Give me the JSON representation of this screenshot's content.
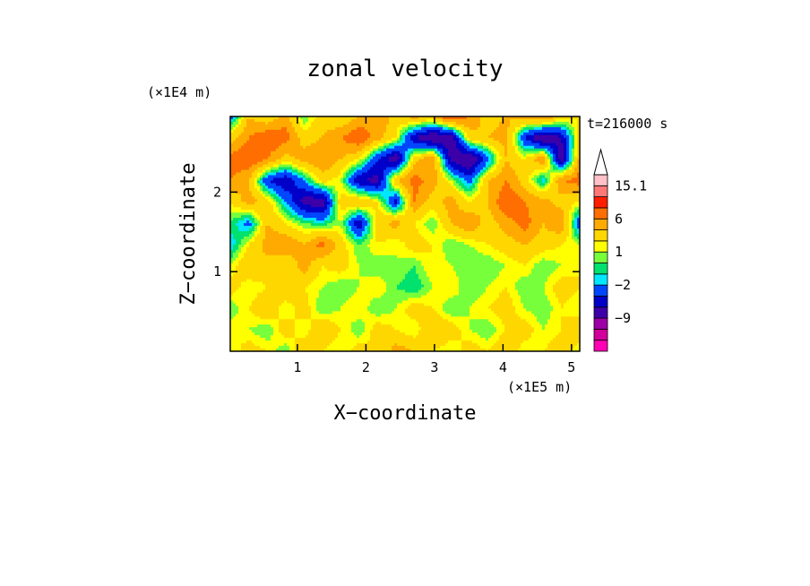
{
  "chart_data": {
    "type": "heatmap",
    "title": "zonal velocity",
    "xlabel": "X−coordinate",
    "ylabel": "Z−coordinate",
    "x_unit": "(×1E5 m)",
    "y_unit": "(×1E4 m)",
    "time_label": "t=216000 s",
    "xlim": [
      0.02,
      5.12
    ],
    "ylim": [
      0,
      2.95
    ],
    "x_ticks": [
      1,
      2,
      3,
      4,
      5
    ],
    "y_ticks": [
      1,
      2
    ],
    "x_tick_labels": [
      "1",
      "2",
      "3",
      "4",
      "5"
    ],
    "y_tick_labels": [
      "1",
      "2"
    ],
    "colorbar": {
      "levels": [
        -15,
        -12,
        -9,
        -6,
        -4,
        -2,
        -1,
        0,
        1,
        2,
        4,
        6,
        9,
        12,
        15.1
      ],
      "colors": [
        "#ff00b4",
        "#d2009b",
        "#9c00a6",
        "#3c00a8",
        "#0000c8",
        "#0046ff",
        "#00e6ff",
        "#00e16e",
        "#78ff3c",
        "#ffff00",
        "#ffd700",
        "#ffaa00",
        "#ff6e00",
        "#ff1e00",
        "#ff7878",
        "#ffc0c8"
      ],
      "tick_labels": [
        "15.1",
        "6",
        "1",
        "−2",
        "−9"
      ],
      "tick_values": [
        15.1,
        6,
        1,
        -2,
        -9
      ]
    },
    "field": {
      "nx": 20,
      "nz": 12,
      "values": [
        [
          1,
          3,
          2,
          0,
          4,
          2,
          1,
          3,
          2,
          5,
          4,
          2,
          1,
          3,
          2,
          4,
          1,
          2,
          3,
          1
        ],
        [
          2,
          1,
          0,
          3,
          1,
          4,
          2,
          0,
          3,
          2,
          1,
          4,
          3,
          1,
          0,
          2,
          3,
          1,
          2,
          4
        ],
        [
          0,
          2,
          4,
          1,
          3,
          0,
          1,
          2,
          0,
          1,
          3,
          2,
          0,
          1,
          2,
          3,
          1,
          0,
          2,
          1
        ],
        [
          3,
          1,
          2,
          4,
          2,
          1,
          0,
          1,
          2,
          0,
          -1,
          1,
          2,
          0,
          1,
          2,
          0,
          1,
          3,
          2
        ],
        [
          1,
          4,
          3,
          2,
          5,
          2,
          3,
          1,
          0,
          1,
          0,
          2,
          1,
          0,
          0,
          1,
          2,
          0,
          1,
          2
        ],
        [
          -2,
          2,
          5,
          6,
          4,
          7,
          3,
          0,
          2,
          1,
          3,
          2,
          0,
          1,
          2,
          3,
          4,
          3,
          2,
          1
        ],
        [
          0,
          -3,
          4,
          2,
          0,
          -1,
          1,
          -6,
          3,
          5,
          2,
          0,
          4,
          6,
          3,
          5,
          7,
          4,
          6,
          -4
        ],
        [
          2,
          5,
          3,
          -2,
          -7,
          -8,
          3,
          4,
          2,
          -5,
          6,
          3,
          5,
          2,
          4,
          8,
          6,
          5,
          3,
          2
        ],
        [
          6,
          4,
          -4,
          -6,
          -2,
          3,
          1,
          -6,
          -7,
          4,
          7,
          5,
          1,
          -3,
          4,
          6,
          3,
          -2,
          6,
          7
        ],
        [
          7,
          8,
          6,
          3,
          5,
          6,
          4,
          2,
          -4,
          -8,
          3,
          6,
          -7,
          -9,
          -3,
          4,
          2,
          6,
          -8,
          5
        ],
        [
          3,
          6,
          8,
          7,
          3,
          4,
          6,
          8,
          5,
          2,
          -6,
          -9,
          -8,
          3,
          4,
          5,
          -4,
          -9,
          -6,
          3
        ],
        [
          -3,
          4,
          2,
          5,
          0,
          3,
          2,
          4,
          6,
          3,
          5,
          4,
          9,
          6,
          3,
          4,
          5,
          7,
          3,
          2
        ]
      ]
    }
  }
}
